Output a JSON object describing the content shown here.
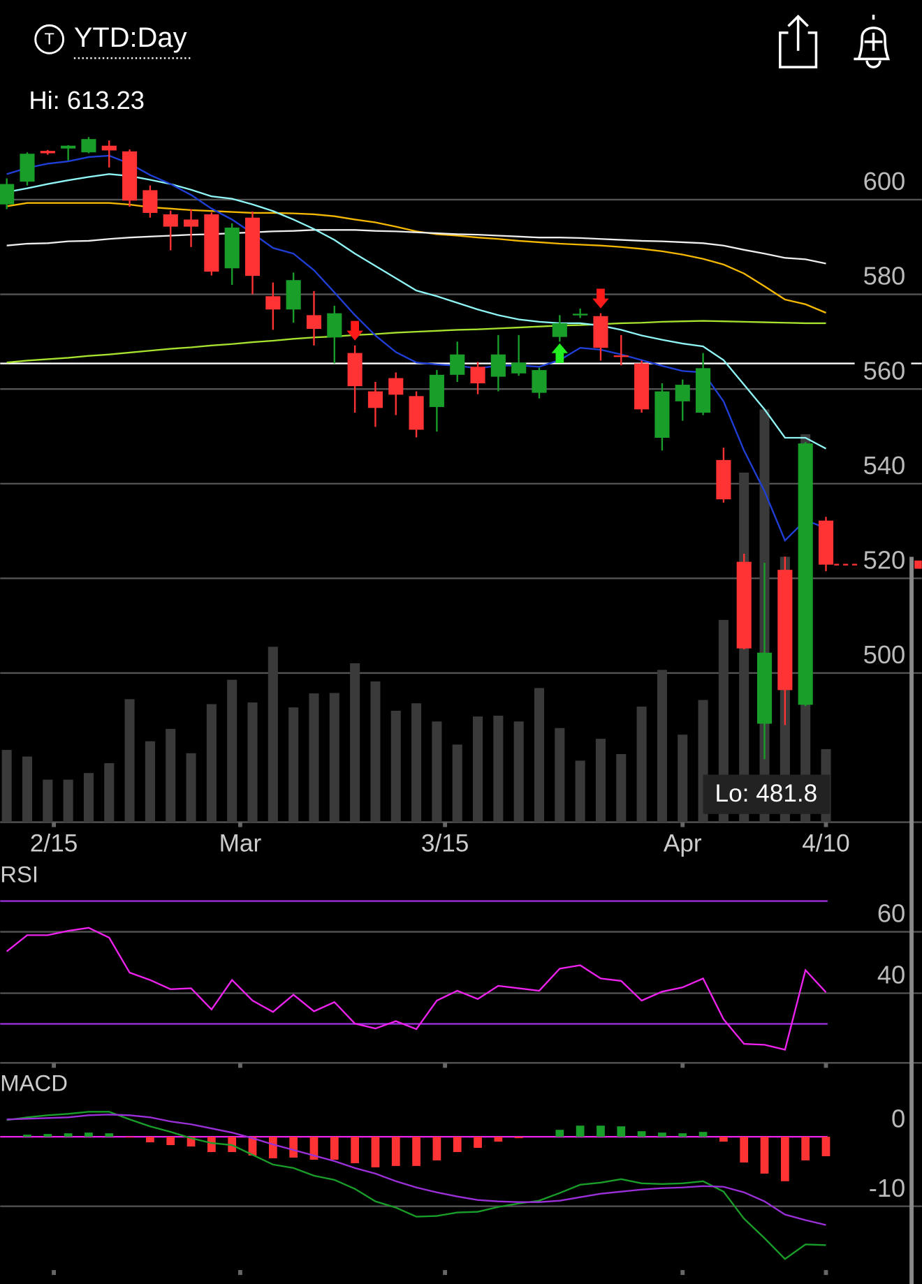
{
  "header": {
    "icon": "T",
    "title": "YTD:Day"
  },
  "chart_data": [
    {
      "type": "candlestick",
      "hi": 613.23,
      "hi_label": "Hi: 613.23",
      "lo": 481.8,
      "lo_label": "Lo: 481.8",
      "open": [
        599,
        603.8,
        610.3,
        610.8,
        610,
        611.4,
        610.2,
        602,
        596.9,
        595.8,
        596.9,
        585.5,
        596.2,
        579.6,
        576.8,
        575.6,
        570.9,
        567.6,
        559.5,
        562.3,
        558.5,
        556.2,
        563,
        564.7,
        562.6,
        563.3,
        559.2,
        571,
        575.6,
        575.4,
        567.1,
        565.4,
        549.7,
        557.4,
        555,
        545,
        523.5,
        489.3,
        521.8,
        493.3,
        532.2
      ],
      "high": [
        604.5,
        610,
        610.5,
        611.5,
        613.23,
        612.5,
        610.6,
        603,
        597.7,
        598,
        597.3,
        595,
        597.5,
        582.5,
        584.6,
        580.7,
        577.6,
        569.2,
        561.5,
        563.5,
        559.5,
        564,
        570,
        565.7,
        571.4,
        571.4,
        564.5,
        575.6,
        577,
        576,
        571.4,
        566,
        561.2,
        562,
        567.6,
        547.6,
        525.2,
        523.3,
        524.6,
        548.8,
        533
      ],
      "low": [
        598,
        603,
        609.5,
        608.3,
        609.8,
        606.8,
        598.5,
        596.2,
        589.3,
        590,
        584,
        582,
        580,
        572.5,
        574,
        569.2,
        565.4,
        555,
        552,
        554.5,
        549.8,
        551,
        561.5,
        558.9,
        559.5,
        562.8,
        558,
        570,
        575,
        566,
        565,
        555,
        547,
        553.3,
        554.5,
        536,
        505,
        481.8,
        489,
        493,
        521.5
      ],
      "close": [
        603.3,
        609.7,
        609.8,
        611.4,
        612.8,
        610.4,
        599.8,
        597.2,
        594.3,
        594.3,
        584.8,
        594.1,
        583.9,
        576.8,
        583,
        572.7,
        576,
        560.6,
        556,
        558.8,
        551.4,
        563,
        567.3,
        561.2,
        567.3,
        565.6,
        564,
        573.9,
        575.9,
        568.7,
        566.9,
        555.7,
        559.5,
        560.9,
        564.4,
        536.7,
        505.2,
        504.3,
        496.4,
        548.5,
        522.9
      ],
      "volume": [
        17.5,
        15.9,
        10.3,
        10.3,
        11.9,
        14.3,
        29.8,
        19.6,
        22.6,
        16.7,
        28.6,
        34.5,
        29,
        42.5,
        27.8,
        31.2,
        31.3,
        38.5,
        34.1,
        27,
        28.8,
        24.4,
        18.8,
        25.6,
        25.8,
        24.4,
        32.5,
        22.8,
        14.9,
        20.2,
        16.5,
        28,
        36.9,
        21.2,
        29.6,
        49,
        84.7,
        100,
        64.3,
        94,
        17.7
      ],
      "vlim": [
        0,
        100
      ],
      "volume_color": "#3a3a3a",
      "up_color": "#1a9e2a",
      "down_color": "#ff3333",
      "series": [
        {
          "color": "#f5b800",
          "values": [
            598.6,
            599.3,
            599.3,
            599.3,
            599.3,
            599.3,
            598.96,
            598.4,
            598.1,
            597.8,
            597.6,
            597.4,
            597.2,
            597.2,
            597.1,
            596.9,
            596.5,
            595.8,
            595.2,
            594.3,
            593.3,
            592.7,
            592.4,
            592,
            591.7,
            591.3,
            591,
            590.7,
            590.5,
            590.3,
            590,
            589.6,
            589.1,
            588.4,
            587.5,
            586.3,
            584.4,
            581.7,
            578.9,
            577.9,
            576.1
          ]
        },
        {
          "color": "#eeeeee",
          "values": [
            590.3,
            590.7,
            590.8,
            591.2,
            591.3,
            591.7,
            592,
            592.2,
            592.4,
            592.6,
            592.7,
            592.9,
            593.1,
            593.3,
            593.4,
            593.6,
            593.6,
            593.6,
            593.4,
            593.3,
            593.1,
            592.9,
            592.7,
            592.6,
            592.4,
            592.2,
            592,
            592,
            591.9,
            591.7,
            591.5,
            591.3,
            591.2,
            591,
            590.8,
            590.3,
            589.4,
            588.6,
            587.7,
            587.4,
            586.5
          ]
        },
        {
          "color": "#a6e22e",
          "values": [
            565.6,
            566,
            566.3,
            566.6,
            567,
            567.3,
            567.7,
            568.1,
            568.5,
            568.8,
            569.2,
            569.5,
            569.9,
            570.2,
            570.6,
            570.9,
            571.1,
            571.4,
            571.6,
            571.9,
            572.1,
            572.3,
            572.5,
            572.6,
            572.8,
            573,
            573.2,
            573.4,
            573.5,
            573.7,
            573.9,
            574,
            574.2,
            574.3,
            574.4,
            574.3,
            574.2,
            574.1,
            574,
            573.9,
            573.9
          ]
        },
        {
          "color": "#8ff5f5",
          "values": [
            601.6,
            602.4,
            603.3,
            604.1,
            604.8,
            605.4,
            605,
            604.2,
            603.3,
            602.1,
            600.7,
            600.2,
            599,
            597.6,
            595.8,
            593.8,
            591.5,
            588.6,
            586,
            583.4,
            580.8,
            579.6,
            578.2,
            576.8,
            575.6,
            574.7,
            574.2,
            573.9,
            573.9,
            573.4,
            572.5,
            571.3,
            570.4,
            569.6,
            569,
            566.1,
            560.9,
            555.7,
            549.7,
            549.7,
            547.4
          ]
        },
        {
          "color": "#1f3fd6",
          "values": [
            605.4,
            606.7,
            607.6,
            608.1,
            609,
            609.3,
            607.6,
            605.2,
            603.3,
            601,
            598.1,
            595.8,
            592.9,
            589.8,
            588.6,
            585.1,
            580.4,
            575.6,
            571.3,
            567.8,
            565.6,
            565.2,
            564.9,
            564.4,
            564.9,
            565,
            564.7,
            566.1,
            568.7,
            568.3,
            567.3,
            566.1,
            564.9,
            563.8,
            563.5,
            557.4,
            547,
            538.4,
            528,
            532.3,
            530.6
          ]
        }
      ],
      "hline": 565.4,
      "hline_color": "#ffffff",
      "last": 522.9,
      "sell_signals": [
        17,
        29
      ],
      "buy_signals": [
        27
      ],
      "sell_color": "#ff1a1a",
      "buy_color": "#22ee22",
      "ylim": [
        468.5,
        614.5
      ],
      "yticks": [
        500,
        520,
        540,
        560,
        580,
        600
      ],
      "grid": true,
      "xlim": [
        0,
        40
      ],
      "xticks": [
        {
          "value": 2.3,
          "label": "2/15"
        },
        {
          "value": 11.4,
          "label": "Mar"
        },
        {
          "value": 21.4,
          "label": "3/15"
        },
        {
          "value": 33,
          "label": "Apr"
        },
        {
          "value": 40,
          "label": "4/10"
        }
      ]
    },
    {
      "type": "line",
      "title": "RSI",
      "color": "#ee22ee",
      "band_color": "#9b30d9",
      "bands": [
        30,
        70
      ],
      "values": [
        53.6,
        58.9,
        58.9,
        60.3,
        61.3,
        58.1,
        46.7,
        44.3,
        41.3,
        41.6,
        34.7,
        44.3,
        37.6,
        33.9,
        39.5,
        34.1,
        37.1,
        30.1,
        28.5,
        30.9,
        28.3,
        37.6,
        40.8,
        38.1,
        42.4,
        41.6,
        40.8,
        48,
        49.1,
        44.8,
        44,
        37.6,
        40.5,
        41.9,
        44.8,
        31.5,
        23.5,
        23.2,
        21.6,
        47.5,
        40.3
      ],
      "ylim": [
        17.3,
        82.1
      ],
      "yticks": [
        40,
        60
      ],
      "grid": true
    },
    {
      "type": "macd",
      "title": "MACD",
      "zero_color": "#ee22ee",
      "series": [
        {
          "color": "#1a9e2a",
          "values": [
            2.4,
            2.8,
            3.1,
            3.3,
            3.6,
            3.6,
            2.5,
            1.5,
            0.7,
            -0.2,
            -0.9,
            -1.2,
            -2.6,
            -4,
            -4.5,
            -5.6,
            -6.2,
            -7.5,
            -9.3,
            -10.2,
            -11.5,
            -11.4,
            -10.9,
            -10.8,
            -10.1,
            -9.6,
            -9.2,
            -8.1,
            -6.9,
            -6.6,
            -6.1,
            -6.7,
            -6.8,
            -6.7,
            -6.4,
            -7.9,
            -11.8,
            -14.6,
            -17.6,
            -15.5,
            -15.6
          ]
        },
        {
          "color": "#9b30d9",
          "values": [
            2.5,
            2.6,
            2.7,
            2.8,
            3.1,
            3.2,
            3.1,
            2.8,
            2.2,
            1.8,
            1.2,
            0.6,
            -0.2,
            -1.1,
            -1.9,
            -2.7,
            -3.5,
            -4.5,
            -5.3,
            -6.4,
            -7.3,
            -8,
            -8.6,
            -9.1,
            -9.3,
            -9.4,
            -9.4,
            -9.2,
            -8.7,
            -8.2,
            -7.9,
            -7.6,
            -7.4,
            -7.3,
            -7.1,
            -7.2,
            -8,
            -9.3,
            -11.2,
            -12,
            -12.7
          ]
        }
      ],
      "histogram": [
        0,
        0.3,
        0.4,
        0.5,
        0.6,
        0.5,
        -0.1,
        -0.8,
        -1.2,
        -1.4,
        -2.2,
        -2.2,
        -2.7,
        -3.1,
        -3,
        -3.3,
        -3.3,
        -3.8,
        -4.4,
        -4.2,
        -4.2,
        -3.4,
        -2.2,
        -1.6,
        -0.7,
        -0.2,
        0,
        1,
        1.6,
        1.6,
        1.5,
        0.8,
        0.6,
        0.5,
        0.7,
        -0.7,
        -3.7,
        -5.3,
        -6.4,
        -3.4,
        -2.8
      ],
      "up_color": "#1a9e2a",
      "down_color": "#ff3333",
      "ylim": [
        -19.9,
        10.4
      ],
      "yticks": [
        0,
        -10
      ],
      "grid": true
    }
  ]
}
